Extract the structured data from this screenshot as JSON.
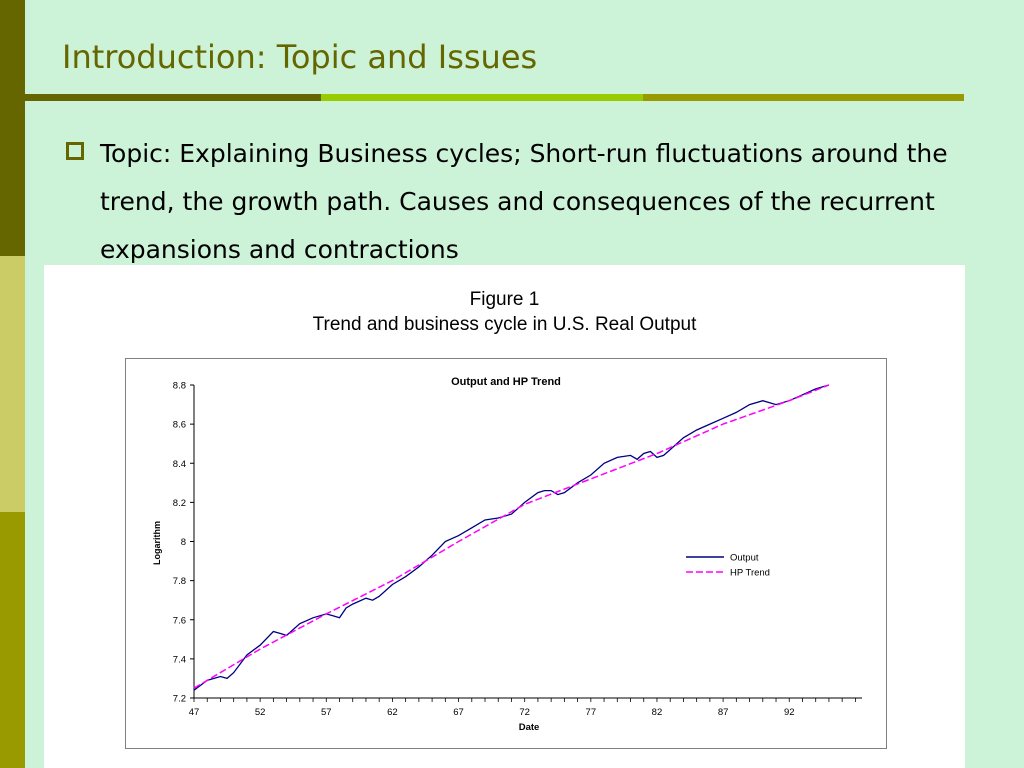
{
  "slide": {
    "title": "Introduction: Topic and Issues",
    "bullet": "Topic: Explaining Business cycles; Short-run fluctuations around the trend, the growth path. Causes and consequences of the recurrent expansions and contractions"
  },
  "figure": {
    "heading": "Figure 1",
    "subheading": "Trend and business cycle in U.S. Real Output"
  },
  "colors": {
    "output_line": "#000080",
    "trend_line": "#ff00ff",
    "title": "#666600"
  },
  "chart_data": {
    "type": "line",
    "title": "Output and HP Trend",
    "xlabel": "Date",
    "ylabel": "Logarithm",
    "xlim": [
      47,
      97.5
    ],
    "ylim": [
      7.2,
      8.8
    ],
    "x_ticks": [
      "47",
      "52",
      "57",
      "62",
      "67",
      "72",
      "77",
      "82",
      "87",
      "92"
    ],
    "y_ticks": [
      "7.2",
      "7.4",
      "7.6",
      "7.8",
      "8",
      "8.2",
      "8.4",
      "8.6",
      "8.8"
    ],
    "legend_position": "right",
    "grid": false,
    "series": [
      {
        "name": "Output",
        "style": "solid",
        "x": [
          47,
          48,
          49,
          49.5,
          50,
          51,
          52,
          53,
          53.5,
          54,
          55,
          56,
          57,
          57.5,
          58,
          58.5,
          59,
          60,
          60.5,
          61,
          62,
          63,
          64,
          65,
          66,
          67,
          68,
          69,
          70,
          71,
          72,
          73,
          73.5,
          74,
          74.5,
          75,
          76,
          77,
          78,
          79,
          80,
          80.5,
          81,
          81.5,
          82,
          82.5,
          83,
          84,
          85,
          86,
          87,
          88,
          89,
          90,
          91,
          92,
          93,
          94,
          95
        ],
        "y": [
          7.24,
          7.29,
          7.31,
          7.3,
          7.33,
          7.42,
          7.47,
          7.54,
          7.53,
          7.52,
          7.58,
          7.61,
          7.63,
          7.62,
          7.61,
          7.66,
          7.68,
          7.71,
          7.7,
          7.72,
          7.78,
          7.82,
          7.87,
          7.93,
          8.0,
          8.03,
          8.07,
          8.11,
          8.12,
          8.14,
          8.2,
          8.25,
          8.26,
          8.26,
          8.24,
          8.25,
          8.3,
          8.34,
          8.4,
          8.43,
          8.44,
          8.42,
          8.45,
          8.46,
          8.43,
          8.44,
          8.47,
          8.53,
          8.57,
          8.6,
          8.63,
          8.66,
          8.7,
          8.72,
          8.7,
          8.72,
          8.75,
          8.78,
          8.8
        ]
      },
      {
        "name": "HP Trend",
        "style": "dashed",
        "x": [
          47,
          52,
          57,
          62,
          67,
          72,
          77,
          82,
          87,
          92,
          95
        ],
        "y": [
          7.25,
          7.45,
          7.63,
          7.8,
          8.0,
          8.19,
          8.32,
          8.45,
          8.6,
          8.72,
          8.8
        ]
      }
    ]
  }
}
